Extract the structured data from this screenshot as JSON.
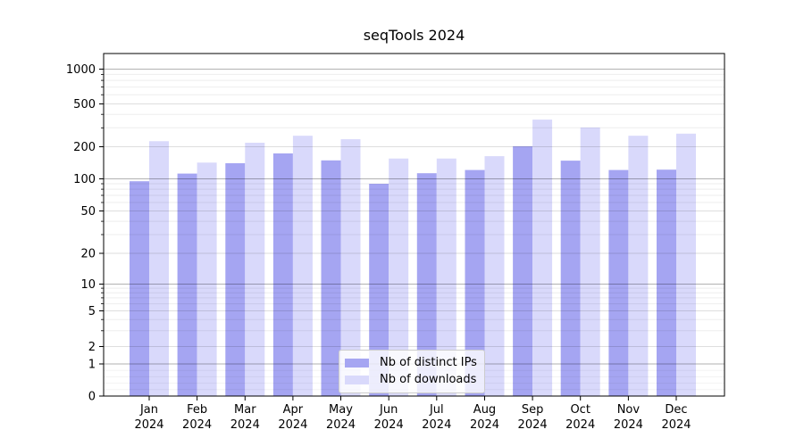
{
  "chart_data": {
    "type": "bar",
    "title": "seqTools 2024",
    "categories": [
      "Jan",
      "Feb",
      "Mar",
      "Apr",
      "May",
      "Jun",
      "Jul",
      "Aug",
      "Sep",
      "Oct",
      "Nov",
      "Dec"
    ],
    "category_year": "2024",
    "series": [
      {
        "name": "Nb of distinct IPs",
        "color": "#a5a5f2",
        "values": [
          95,
          112,
          140,
          173,
          149,
          90,
          113,
          121,
          202,
          148,
          121,
          122
        ]
      },
      {
        "name": "Nb of downloads",
        "color": "#d9d9fb",
        "values": [
          225,
          142,
          218,
          253,
          235,
          155,
          155,
          163,
          357,
          302,
          253,
          265
        ]
      }
    ],
    "xlabel": "",
    "ylabel": "",
    "yscale": "symlog",
    "yticks": [
      0,
      1,
      2,
      5,
      10,
      20,
      50,
      100,
      200,
      500,
      1000
    ],
    "ylim": [
      0,
      1400
    ],
    "grid": true,
    "legend_position": "lower-center-inside",
    "axis_color": "#000000",
    "text_color": "#000000",
    "background": "#ffffff"
  }
}
